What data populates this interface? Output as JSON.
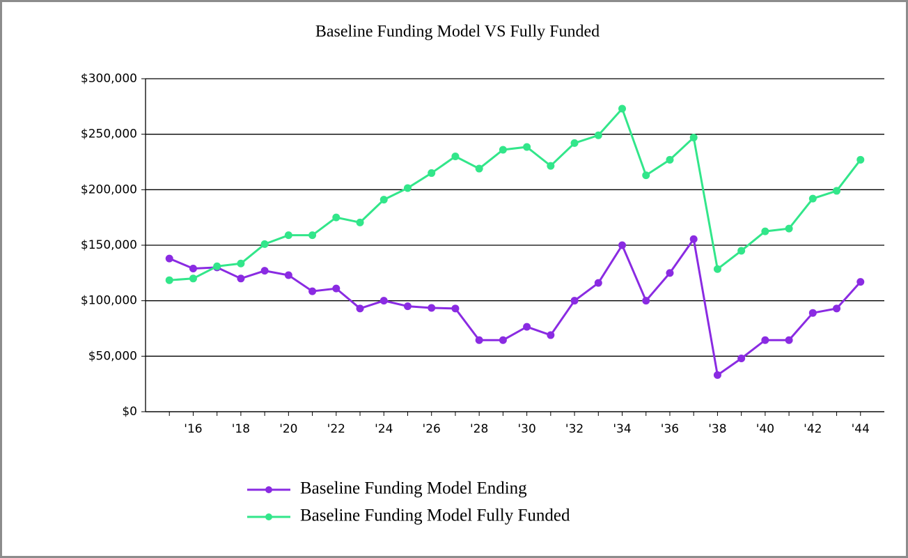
{
  "chart_data": {
    "type": "line",
    "title": "Baseline Funding Model VS Fully Funded",
    "categories": [
      null,
      "'16",
      null,
      "'18",
      null,
      "'20",
      null,
      "'22",
      null,
      "'24",
      null,
      "'26",
      null,
      "'28",
      null,
      "'30",
      null,
      "'32",
      null,
      "'34",
      null,
      "'36",
      null,
      "'38",
      null,
      "'40",
      null,
      "'42",
      null,
      "'44"
    ],
    "series": [
      {
        "name": "Baseline Funding Model Ending",
        "color": "#8a2be2",
        "values": [
          138000,
          129000,
          130000,
          120000,
          127000,
          123000,
          108500,
          111000,
          93000,
          100000,
          95000,
          93500,
          93000,
          64500,
          64500,
          76500,
          69000,
          100000,
          116000,
          150000,
          100000,
          125000,
          155500,
          33000,
          48000,
          64500,
          64500,
          89000,
          93000,
          117000
        ]
      },
      {
        "name": "Baseline Funding Model Fully Funded",
        "color": "#32e68a",
        "values": [
          118500,
          120000,
          131000,
          133500,
          151000,
          159000,
          159000,
          175000,
          170500,
          191000,
          201500,
          215000,
          230000,
          219000,
          236000,
          238500,
          221500,
          242000,
          249000,
          273000,
          213000,
          227000,
          247000,
          128500,
          145000,
          162500,
          165000,
          192000,
          199000,
          227000
        ]
      }
    ],
    "ylim": [
      0,
      300000
    ],
    "yticks": [
      {
        "value": 0,
        "label": "$0"
      },
      {
        "value": 50000,
        "label": "$50,000"
      },
      {
        "value": 100000,
        "label": "$100,000"
      },
      {
        "value": 150000,
        "label": "$150,000"
      },
      {
        "value": 200000,
        "label": "$200,000"
      },
      {
        "value": 250000,
        "label": "$250,000"
      },
      {
        "value": 300000,
        "label": "$300,000"
      }
    ],
    "grid": true,
    "legend": "bottom"
  }
}
